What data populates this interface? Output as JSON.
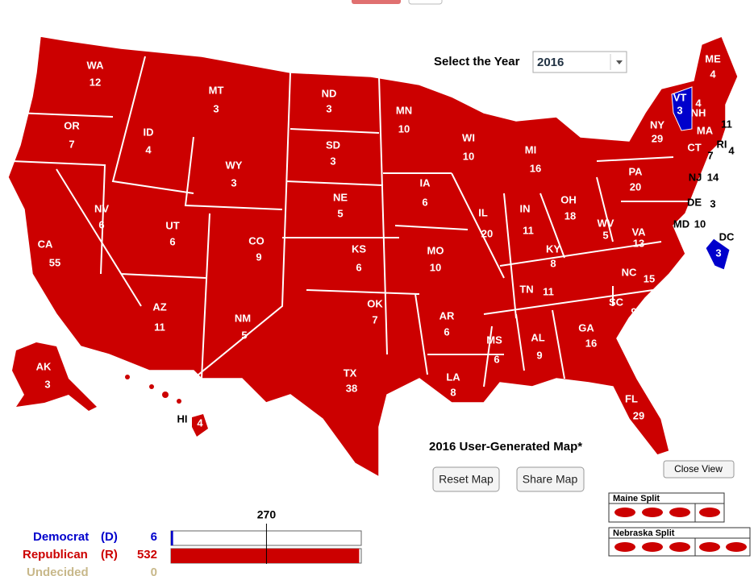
{
  "header": {
    "select_label": "Select the Year",
    "year": "2016"
  },
  "map": {
    "title": "2016 User-Generated Map*",
    "states": [
      {
        "abbr": "WA",
        "votes": 12,
        "color": "#cc0000"
      },
      {
        "abbr": "OR",
        "votes": 7,
        "color": "#cc0000"
      },
      {
        "abbr": "CA",
        "votes": 55,
        "color": "#cc0000"
      },
      {
        "abbr": "NV",
        "votes": 6,
        "color": "#cc0000"
      },
      {
        "abbr": "ID",
        "votes": 4,
        "color": "#cc0000"
      },
      {
        "abbr": "MT",
        "votes": 3,
        "color": "#cc0000"
      },
      {
        "abbr": "WY",
        "votes": 3,
        "color": "#cc0000"
      },
      {
        "abbr": "UT",
        "votes": 6,
        "color": "#cc0000"
      },
      {
        "abbr": "AZ",
        "votes": 11,
        "color": "#cc0000"
      },
      {
        "abbr": "CO",
        "votes": 9,
        "color": "#cc0000"
      },
      {
        "abbr": "NM",
        "votes": 5,
        "color": "#cc0000"
      },
      {
        "abbr": "ND",
        "votes": 3,
        "color": "#cc0000"
      },
      {
        "abbr": "SD",
        "votes": 3,
        "color": "#cc0000"
      },
      {
        "abbr": "NE",
        "votes": 5,
        "color": "#cc0000"
      },
      {
        "abbr": "KS",
        "votes": 6,
        "color": "#cc0000"
      },
      {
        "abbr": "OK",
        "votes": 7,
        "color": "#cc0000"
      },
      {
        "abbr": "TX",
        "votes": 38,
        "color": "#cc0000"
      },
      {
        "abbr": "MN",
        "votes": 10,
        "color": "#cc0000"
      },
      {
        "abbr": "IA",
        "votes": 6,
        "color": "#cc0000"
      },
      {
        "abbr": "MO",
        "votes": 10,
        "color": "#cc0000"
      },
      {
        "abbr": "AR",
        "votes": 6,
        "color": "#cc0000"
      },
      {
        "abbr": "LA",
        "votes": 8,
        "color": "#cc0000"
      },
      {
        "abbr": "WI",
        "votes": 10,
        "color": "#cc0000"
      },
      {
        "abbr": "IL",
        "votes": 20,
        "color": "#cc0000"
      },
      {
        "abbr": "MI",
        "votes": 16,
        "color": "#cc0000"
      },
      {
        "abbr": "IN",
        "votes": 11,
        "color": "#cc0000"
      },
      {
        "abbr": "OH",
        "votes": 18,
        "color": "#cc0000"
      },
      {
        "abbr": "KY",
        "votes": 8,
        "color": "#cc0000"
      },
      {
        "abbr": "TN",
        "votes": 11,
        "color": "#cc0000"
      },
      {
        "abbr": "MS",
        "votes": 6,
        "color": "#cc0000"
      },
      {
        "abbr": "AL",
        "votes": 9,
        "color": "#cc0000"
      },
      {
        "abbr": "GA",
        "votes": 16,
        "color": "#cc0000"
      },
      {
        "abbr": "FL",
        "votes": 29,
        "color": "#cc0000"
      },
      {
        "abbr": "SC",
        "votes": 9,
        "color": "#cc0000"
      },
      {
        "abbr": "NC",
        "votes": 15,
        "color": "#cc0000"
      },
      {
        "abbr": "VA",
        "votes": 13,
        "color": "#cc0000"
      },
      {
        "abbr": "WV",
        "votes": 5,
        "color": "#cc0000"
      },
      {
        "abbr": "PA",
        "votes": 20,
        "color": "#cc0000"
      },
      {
        "abbr": "NY",
        "votes": 29,
        "color": "#cc0000"
      },
      {
        "abbr": "VT",
        "votes": 3,
        "color": "#0000cc"
      },
      {
        "abbr": "NH",
        "votes": 4,
        "color": "#cc0000"
      },
      {
        "abbr": "ME",
        "votes": 4,
        "color": "#cc0000"
      },
      {
        "abbr": "MA",
        "votes": 11,
        "color": "#cc0000"
      },
      {
        "abbr": "RI",
        "votes": 4,
        "color": "#cc0000"
      },
      {
        "abbr": "CT",
        "votes": 7,
        "color": "#cc0000"
      },
      {
        "abbr": "NJ",
        "votes": 14,
        "color": "#cc0000"
      },
      {
        "abbr": "DE",
        "votes": 3,
        "color": "#cc0000"
      },
      {
        "abbr": "MD",
        "votes": 10,
        "color": "#cc0000"
      },
      {
        "abbr": "DC",
        "votes": 3,
        "color": "#0000cc"
      },
      {
        "abbr": "AK",
        "votes": 3,
        "color": "#cc0000"
      },
      {
        "abbr": "HI",
        "votes": 4,
        "color": "#cc0000"
      }
    ]
  },
  "buttons": {
    "reset": "Reset Map",
    "share": "Share Map",
    "close": "Close View"
  },
  "splits": {
    "maine": "Maine Split",
    "nebraska": "Nebraska Split"
  },
  "tally": {
    "threshold": 270,
    "parties": [
      {
        "name": "Democrat",
        "abbr": "(D)",
        "votes": 6,
        "color": "#0000cc"
      },
      {
        "name": "Republican",
        "abbr": "(R)",
        "votes": 532,
        "color": "#cc0000"
      },
      {
        "name": "Undecided",
        "abbr": "",
        "votes": 0,
        "color": "#c8b88a"
      }
    ]
  }
}
